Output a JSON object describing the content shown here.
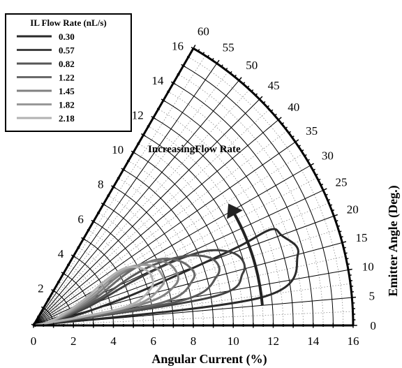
{
  "chart_data": {
    "type": "polar-line",
    "title": "",
    "radial_axis": {
      "label": "Angular Current (%)",
      "range": [
        0,
        16
      ],
      "ticks": [
        0,
        2,
        4,
        6,
        8,
        10,
        12,
        14,
        16
      ]
    },
    "angular_axis": {
      "label": "Emitter Angle (Deg.)",
      "range": [
        0,
        60
      ],
      "ticks": [
        0,
        5,
        10,
        15,
        20,
        25,
        30,
        35,
        40,
        45,
        50,
        55,
        60
      ]
    },
    "grid": true,
    "legend": {
      "title": "IL Flow Rate (nL/s)",
      "position": "top-left"
    },
    "annotation": {
      "text": "IncreasingFlow Rate",
      "arrow_start": {
        "r": 11.5,
        "theta": 5
      },
      "arrow_end": {
        "r": 11.5,
        "theta": 32
      }
    },
    "series": [
      {
        "name": "0.30",
        "color": "#2a2a2a",
        "points": [
          [
            0,
            0
          ],
          [
            11.5,
            7
          ],
          [
            13.7,
            15
          ],
          [
            13.2,
            20
          ],
          [
            12.8,
            22
          ],
          [
            11,
            21
          ],
          [
            8,
            19.5
          ],
          [
            5,
            17
          ],
          [
            2,
            13
          ],
          [
            0,
            0
          ]
        ]
      },
      {
        "name": "0.57",
        "color": "#404040",
        "points": [
          [
            0,
            0
          ],
          [
            9,
            9
          ],
          [
            10.8,
            14
          ],
          [
            10.8,
            19
          ],
          [
            9.6,
            23
          ],
          [
            7.8,
            24.5
          ],
          [
            5.5,
            24
          ],
          [
            3,
            19
          ],
          [
            1,
            12
          ],
          [
            0,
            0
          ]
        ]
      },
      {
        "name": "0.82",
        "color": "#565656",
        "points": [
          [
            0,
            0
          ],
          [
            7.5,
            9.5
          ],
          [
            9.5,
            15
          ],
          [
            9.6,
            20
          ],
          [
            8.6,
            24
          ],
          [
            7,
            26.5
          ],
          [
            5.5,
            26.5
          ],
          [
            3.5,
            22
          ],
          [
            1.2,
            13
          ],
          [
            0,
            0
          ]
        ]
      },
      {
        "name": "1.22",
        "color": "#6a6a6a",
        "points": [
          [
            0,
            0
          ],
          [
            6.5,
            10
          ],
          [
            8.3,
            16
          ],
          [
            8.3,
            21
          ],
          [
            7.6,
            26
          ],
          [
            6.5,
            29
          ],
          [
            5.2,
            29
          ],
          [
            3.2,
            23
          ],
          [
            1,
            13
          ],
          [
            0,
            0
          ]
        ]
      },
      {
        "name": "1.45",
        "color": "#808080",
        "points": [
          [
            0,
            0
          ],
          [
            5.5,
            11
          ],
          [
            7.4,
            16
          ],
          [
            7.6,
            22
          ],
          [
            7.1,
            27
          ],
          [
            6,
            30
          ],
          [
            4.8,
            30
          ],
          [
            3,
            24
          ],
          [
            1,
            13
          ],
          [
            0,
            0
          ]
        ]
      },
      {
        "name": "1.82",
        "color": "#989898",
        "points": [
          [
            0,
            0
          ],
          [
            5,
            11
          ],
          [
            6.7,
            17
          ],
          [
            6.9,
            22
          ],
          [
            6.6,
            27
          ],
          [
            5.7,
            31
          ],
          [
            4.6,
            31
          ],
          [
            2.8,
            25
          ],
          [
            1,
            14
          ],
          [
            0,
            0
          ]
        ]
      },
      {
        "name": "2.18",
        "color": "#b2b2b2",
        "points": [
          [
            0,
            0
          ],
          [
            4.5,
            11
          ],
          [
            6.1,
            17
          ],
          [
            6.4,
            23
          ],
          [
            6.1,
            28
          ],
          [
            5.4,
            32
          ],
          [
            4.3,
            32
          ],
          [
            2.6,
            26
          ],
          [
            0.9,
            14
          ],
          [
            0,
            0
          ]
        ]
      }
    ]
  }
}
